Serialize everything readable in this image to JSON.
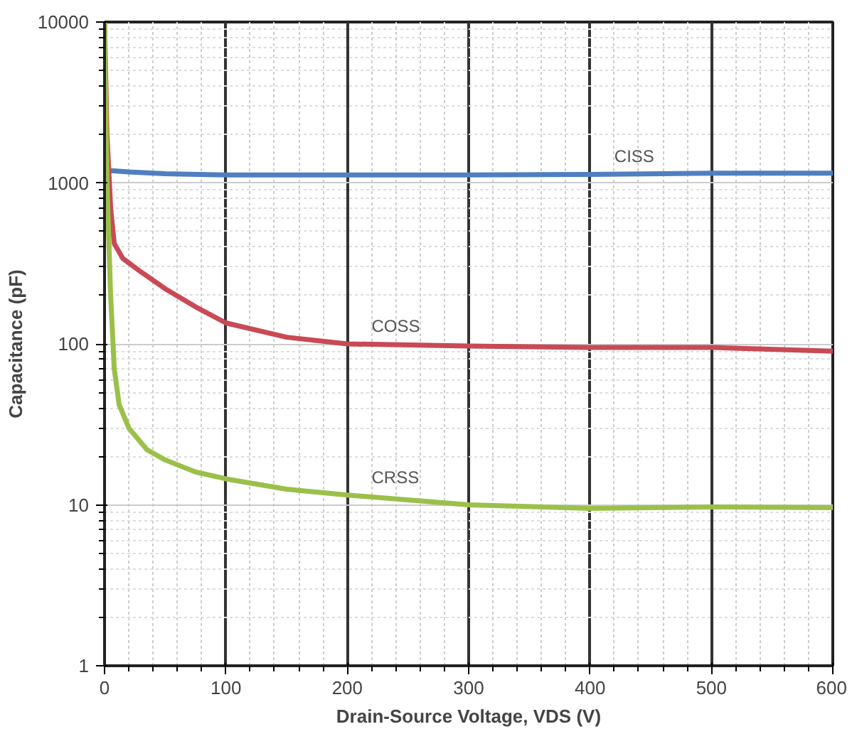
{
  "chart_data": {
    "type": "line",
    "xlabel": "Drain-Source Voltage, VDS (V)",
    "ylabel": "Capacitance (pF)",
    "log": "y",
    "grid": true,
    "legend": false,
    "xlim": [
      0,
      600
    ],
    "xticks": [
      0,
      100,
      200,
      300,
      400,
      500,
      600
    ],
    "ylim": [
      1,
      10000
    ],
    "yticks": [
      1,
      10,
      100,
      1000,
      10000
    ],
    "series": [
      {
        "name": "CISS",
        "color": "#4f7fc0",
        "x": [
          0,
          20,
          50,
          100,
          200,
          300,
          400,
          500,
          600
        ],
        "values": [
          1200,
          1170,
          1140,
          1120,
          1120,
          1120,
          1130,
          1150,
          1150
        ]
      },
      {
        "name": "COSS",
        "color": "#c84a55",
        "x": [
          0,
          2,
          5,
          8,
          15,
          30,
          50,
          75,
          100,
          150,
          200,
          300,
          400,
          500,
          600
        ],
        "values": [
          10000,
          2000,
          700,
          420,
          340,
          280,
          220,
          170,
          135,
          110,
          100,
          97,
          95,
          95,
          90
        ]
      },
      {
        "name": "CRSS",
        "color": "#9bc04a",
        "x": [
          0,
          2,
          5,
          8,
          12,
          20,
          35,
          50,
          75,
          100,
          150,
          200,
          300,
          400,
          500,
          600
        ],
        "values": [
          10000,
          1000,
          200,
          70,
          42,
          30,
          22,
          19,
          16,
          14.5,
          12.5,
          11.5,
          10,
          9.5,
          9.7,
          9.6
        ]
      }
    ]
  }
}
